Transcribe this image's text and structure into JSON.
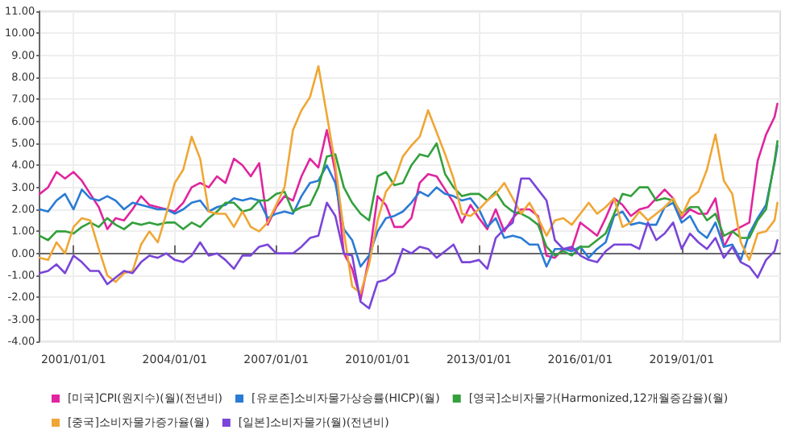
{
  "chart_data": {
    "type": "line",
    "x": [
      "2000-01",
      "2000-04",
      "2000-07",
      "2000-10",
      "2001-01",
      "2001-04",
      "2001-07",
      "2001-10",
      "2002-01",
      "2002-04",
      "2002-07",
      "2002-10",
      "2003-01",
      "2003-04",
      "2003-07",
      "2003-10",
      "2004-01",
      "2004-04",
      "2004-07",
      "2004-10",
      "2005-01",
      "2005-04",
      "2005-07",
      "2005-10",
      "2006-01",
      "2006-04",
      "2006-07",
      "2006-10",
      "2007-01",
      "2007-04",
      "2007-07",
      "2007-10",
      "2008-01",
      "2008-04",
      "2008-07",
      "2008-10",
      "2009-01",
      "2009-04",
      "2009-07",
      "2009-10",
      "2010-01",
      "2010-04",
      "2010-07",
      "2010-10",
      "2011-01",
      "2011-04",
      "2011-07",
      "2011-10",
      "2012-01",
      "2012-04",
      "2012-07",
      "2012-10",
      "2013-01",
      "2013-04",
      "2013-07",
      "2013-10",
      "2014-01",
      "2014-04",
      "2014-07",
      "2014-10",
      "2015-01",
      "2015-04",
      "2015-07",
      "2015-10",
      "2016-01",
      "2016-04",
      "2016-07",
      "2016-10",
      "2017-01",
      "2017-04",
      "2017-07",
      "2017-10",
      "2018-01",
      "2018-04",
      "2018-07",
      "2018-10",
      "2019-01",
      "2019-04",
      "2019-07",
      "2019-10",
      "2020-01",
      "2020-04",
      "2020-07",
      "2020-10",
      "2021-01",
      "2021-04",
      "2021-07",
      "2021-10",
      "2021-11"
    ],
    "series": [
      {
        "name": "[미국]CPI(원지수)(월)(전년비)",
        "color": "#e0259e",
        "values": [
          2.7,
          3.0,
          3.7,
          3.4,
          3.7,
          3.3,
          2.7,
          2.1,
          1.1,
          1.6,
          1.5,
          2.0,
          2.6,
          2.2,
          2.1,
          2.0,
          1.9,
          2.3,
          3.0,
          3.2,
          3.0,
          3.5,
          3.2,
          4.3,
          4.0,
          3.5,
          4.1,
          1.3,
          2.1,
          2.6,
          2.4,
          3.5,
          4.3,
          3.9,
          5.6,
          3.7,
          0.0,
          -0.7,
          -2.1,
          -0.2,
          2.6,
          2.2,
          1.2,
          1.2,
          1.6,
          3.2,
          3.6,
          3.5,
          2.9,
          2.3,
          1.4,
          2.2,
          1.6,
          1.1,
          2.0,
          1.0,
          1.6,
          2.0,
          2.0,
          1.7,
          -0.1,
          -0.2,
          0.2,
          0.2,
          1.4,
          1.1,
          0.8,
          1.6,
          2.5,
          2.2,
          1.7,
          2.0,
          2.1,
          2.5,
          2.9,
          2.5,
          1.6,
          2.0,
          1.8,
          1.8,
          2.5,
          0.3,
          1.0,
          1.2,
          1.4,
          4.2,
          5.4,
          6.2,
          6.8
        ]
      },
      {
        "name": "[유로존]소비자물가상승률(HICP)(월)",
        "color": "#2a7bd4",
        "values": [
          2.0,
          1.9,
          2.4,
          2.7,
          2.0,
          2.9,
          2.5,
          2.4,
          2.6,
          2.4,
          2.0,
          2.3,
          2.2,
          2.1,
          2.0,
          2.0,
          1.8,
          2.0,
          2.3,
          2.4,
          1.9,
          2.1,
          2.2,
          2.5,
          2.4,
          2.5,
          2.4,
          1.6,
          1.8,
          1.9,
          1.8,
          2.6,
          3.2,
          3.3,
          4.0,
          3.2,
          1.1,
          0.6,
          -0.6,
          -0.1,
          1.0,
          1.6,
          1.7,
          1.9,
          2.3,
          2.8,
          2.6,
          3.0,
          2.7,
          2.6,
          2.4,
          2.5,
          2.0,
          1.2,
          1.6,
          0.7,
          0.8,
          0.7,
          0.4,
          0.4,
          -0.6,
          0.2,
          0.2,
          0.1,
          0.3,
          -0.2,
          0.2,
          0.5,
          1.7,
          1.9,
          1.3,
          1.4,
          1.3,
          1.3,
          2.1,
          2.3,
          1.4,
          1.7,
          1.0,
          0.7,
          1.4,
          0.3,
          0.4,
          -0.3,
          0.9,
          1.6,
          2.2,
          4.1,
          4.9
        ]
      },
      {
        "name": "[영국]소비자물가(Harmonized,12개월증감율)(월)",
        "color": "#33a03c",
        "values": [
          0.8,
          0.6,
          1.0,
          1.0,
          0.9,
          1.2,
          1.4,
          1.2,
          1.6,
          1.3,
          1.1,
          1.4,
          1.3,
          1.4,
          1.3,
          1.4,
          1.4,
          1.1,
          1.4,
          1.2,
          1.6,
          1.9,
          2.3,
          2.3,
          1.9,
          2.0,
          2.4,
          2.4,
          2.7,
          2.8,
          1.9,
          2.1,
          2.2,
          3.0,
          4.4,
          4.5,
          3.0,
          2.3,
          1.8,
          1.5,
          3.5,
          3.7,
          3.1,
          3.2,
          4.0,
          4.5,
          4.4,
          5.0,
          3.6,
          3.0,
          2.6,
          2.7,
          2.7,
          2.4,
          2.8,
          2.2,
          1.9,
          1.8,
          1.6,
          1.3,
          0.3,
          -0.1,
          0.1,
          -0.1,
          0.3,
          0.3,
          0.6,
          0.9,
          1.8,
          2.7,
          2.6,
          3.0,
          3.0,
          2.4,
          2.5,
          2.4,
          1.8,
          2.1,
          2.1,
          1.5,
          1.8,
          0.8,
          1.0,
          0.7,
          0.7,
          1.5,
          2.0,
          4.2,
          5.1
        ]
      },
      {
        "name": "[중국]소비자물가증가율(월)",
        "color": "#f0a635",
        "values": [
          -0.2,
          -0.3,
          0.5,
          0.0,
          1.2,
          1.6,
          1.5,
          0.2,
          -1.0,
          -1.3,
          -0.9,
          -0.8,
          0.4,
          1.0,
          0.5,
          1.8,
          3.2,
          3.8,
          5.3,
          4.3,
          1.9,
          1.8,
          1.8,
          1.2,
          1.9,
          1.2,
          1.0,
          1.4,
          2.2,
          3.0,
          5.6,
          6.5,
          7.1,
          8.5,
          6.3,
          4.0,
          1.0,
          -1.5,
          -1.8,
          -0.5,
          1.5,
          2.8,
          3.3,
          4.4,
          4.9,
          5.3,
          6.5,
          5.5,
          4.5,
          3.4,
          1.8,
          1.7,
          2.0,
          2.4,
          2.7,
          3.2,
          2.5,
          1.8,
          2.3,
          1.6,
          0.8,
          1.5,
          1.6,
          1.3,
          1.8,
          2.3,
          1.8,
          2.1,
          2.5,
          1.2,
          1.4,
          1.9,
          1.5,
          1.8,
          2.1,
          2.5,
          1.7,
          2.5,
          2.8,
          3.8,
          5.4,
          3.3,
          2.7,
          0.5,
          -0.3,
          0.9,
          1.0,
          1.5,
          2.3
        ]
      },
      {
        "name": "[일본]소비자물가(월)(전년비)",
        "color": "#7a45d8",
        "values": [
          -0.9,
          -0.8,
          -0.5,
          -0.9,
          -0.1,
          -0.4,
          -0.8,
          -0.8,
          -1.4,
          -1.1,
          -0.8,
          -0.9,
          -0.4,
          -0.1,
          -0.2,
          0.0,
          -0.3,
          -0.4,
          -0.1,
          0.5,
          -0.1,
          0.0,
          -0.3,
          -0.7,
          -0.1,
          -0.1,
          0.3,
          0.4,
          0.0,
          0.0,
          0.0,
          0.3,
          0.7,
          0.8,
          2.3,
          1.7,
          0.0,
          -0.1,
          -2.2,
          -2.5,
          -1.3,
          -1.2,
          -0.9,
          0.2,
          0.0,
          0.3,
          0.2,
          -0.2,
          0.1,
          0.4,
          -0.4,
          -0.4,
          -0.3,
          -0.7,
          0.7,
          1.1,
          1.4,
          3.4,
          3.4,
          2.9,
          2.4,
          0.6,
          0.2,
          0.3,
          -0.1,
          -0.3,
          -0.4,
          0.1,
          0.4,
          0.4,
          0.4,
          0.2,
          1.4,
          0.6,
          0.9,
          1.4,
          0.2,
          0.9,
          0.5,
          0.2,
          0.7,
          -0.2,
          0.3,
          -0.4,
          -0.6,
          -1.1,
          -0.3,
          0.1,
          0.6
        ]
      }
    ],
    "xlim": [
      "2000-01-01",
      "2021-12-01"
    ],
    "xticks": [
      {
        "value": "2001-01-01",
        "label": "2001/01/01"
      },
      {
        "value": "2004-01-01",
        "label": "2004/01/01"
      },
      {
        "value": "2007-01-01",
        "label": "2007/01/01"
      },
      {
        "value": "2010-01-01",
        "label": "2010/01/01"
      },
      {
        "value": "2013-01-01",
        "label": "2013/01/01"
      },
      {
        "value": "2016-01-01",
        "label": "2016/01/01"
      },
      {
        "value": "2019-01-01",
        "label": "2019/01/01"
      }
    ],
    "ylim": [
      -4,
      11
    ],
    "yticks": [
      {
        "value": -4,
        "label": "-4.00"
      },
      {
        "value": -3,
        "label": "-3.00"
      },
      {
        "value": -2,
        "label": "-2.00"
      },
      {
        "value": -1,
        "label": "-1.00"
      },
      {
        "value": 0,
        "label": "0.00"
      },
      {
        "value": 1,
        "label": "1.00"
      },
      {
        "value": 2,
        "label": "2.00"
      },
      {
        "value": 3,
        "label": "3.00"
      },
      {
        "value": 4,
        "label": "4.00"
      },
      {
        "value": 5,
        "label": "5.00"
      },
      {
        "value": 6,
        "label": "6.00"
      },
      {
        "value": 7,
        "label": "7.00"
      },
      {
        "value": 8,
        "label": "8.00"
      },
      {
        "value": 9,
        "label": "9.00"
      },
      {
        "value": 10,
        "label": "10.00"
      },
      {
        "value": 11,
        "label": "11.00"
      }
    ],
    "grid": true,
    "legend": "bottom",
    "marker": "none",
    "line_style": "solid"
  }
}
